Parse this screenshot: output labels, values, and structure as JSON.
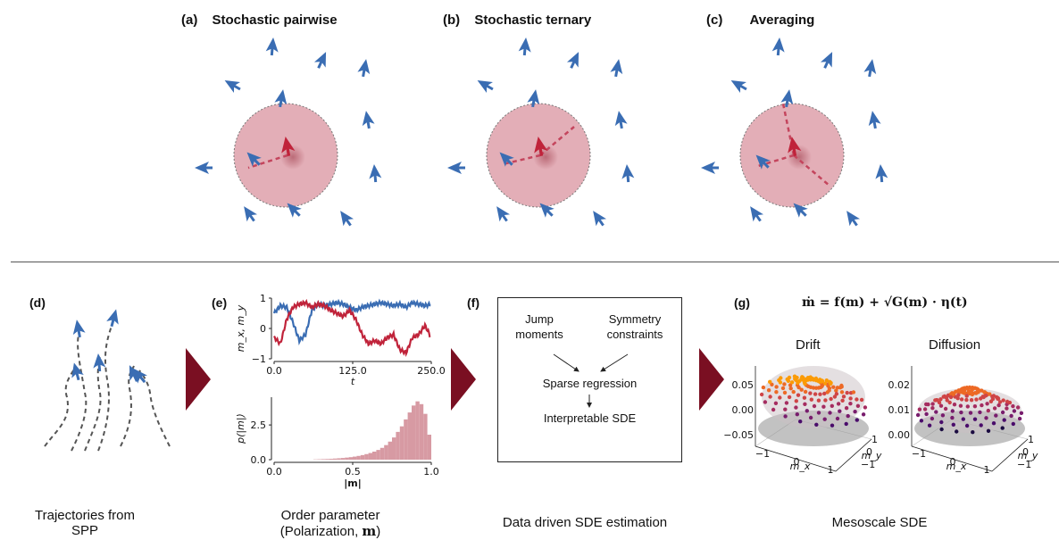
{
  "colors": {
    "agent": "#3a6db3",
    "focal": "#c0233a",
    "circle": "#e3aeb7",
    "chevron": "#7a0f22",
    "series_mx": "#3a6db3",
    "series_my": "#c0233a",
    "hist": "#d79aa3"
  },
  "top_panels": [
    {
      "letter": "(a)",
      "title": "Stochastic pairwise"
    },
    {
      "letter": "(b)",
      "title": "Stochastic ternary"
    },
    {
      "letter": "(c)",
      "title": "Averaging"
    }
  ],
  "panel_d": {
    "letter": "(d)",
    "caption_line1": "Trajectories from",
    "caption_line2": "SPP"
  },
  "panel_e": {
    "letter": "(e)",
    "caption_line1": "Order parameter",
    "caption_line2": "(Polarization, ",
    "caption_bold": "m",
    "caption_end": ")",
    "timeseries": {
      "ylabel": "m_x, m_y",
      "xlabel": "t",
      "yticks": [
        "1",
        "0",
        "−1"
      ],
      "xticks": [
        "0.0",
        "125.0",
        "250.0"
      ]
    },
    "histogram": {
      "ylabel": "p(|m|)",
      "xlabel": "|m|",
      "yticks": [
        "2.5",
        "0.0"
      ],
      "xticks": [
        "0.0",
        "0.5",
        "1.0"
      ]
    }
  },
  "panel_f": {
    "letter": "(f)",
    "box_jump": [
      "Jump",
      "moments"
    ],
    "box_sym": [
      "Symmetry",
      "constraints"
    ],
    "box_sparse": "Sparse regression",
    "box_sde": "Interpretable SDE",
    "caption": "Data driven SDE estimation"
  },
  "panel_g": {
    "letter": "(g)",
    "equation": "ṁ = f(m) + √G(m) · η(t)",
    "drift": {
      "title": "Drift",
      "zticks": [
        "0.05",
        "0.00",
        "−0.05"
      ],
      "xticks": [
        "−1",
        "0",
        "1"
      ],
      "yticks": [
        "1",
        "0",
        "−1"
      ],
      "xlabel": "m_x",
      "ylabel": "m_y"
    },
    "diffusion": {
      "title": "Diffusion",
      "zticks": [
        "0.02",
        "0.01",
        "0.00"
      ],
      "xticks": [
        "−1",
        "0",
        "1"
      ],
      "yticks": [
        "1",
        "0",
        "−1"
      ],
      "xlabel": "m_x",
      "ylabel": "m_y"
    },
    "caption": "Mesoscale SDE"
  },
  "chart_data": [
    {
      "type": "line",
      "xlabel": "t",
      "ylabel": "m_x, m_y",
      "xlim": [
        0,
        250
      ],
      "ylim": [
        -1,
        1
      ],
      "series": [
        {
          "values_x": [
            0,
            10,
            20,
            30,
            40,
            50,
            60,
            70,
            80,
            90,
            100,
            110,
            120,
            130,
            140,
            150,
            160,
            170,
            180,
            190,
            200,
            210,
            220,
            230,
            240,
            250
          ],
          "values_y": [
            0.5,
            0.75,
            0.7,
            0.2,
            -0.4,
            -0.2,
            0.6,
            0.8,
            0.75,
            0.8,
            0.85,
            0.8,
            0.7,
            0.6,
            0.7,
            0.75,
            0.8,
            0.85,
            0.8,
            0.75,
            0.8,
            0.7,
            0.85,
            0.8,
            0.75,
            0.8
          ]
        },
        {
          "values_x": [
            0,
            10,
            20,
            30,
            40,
            50,
            60,
            70,
            80,
            90,
            100,
            110,
            120,
            130,
            140,
            150,
            160,
            170,
            180,
            190,
            200,
            210,
            220,
            230,
            240,
            250
          ],
          "values_y": [
            -0.3,
            -0.5,
            0.3,
            0.7,
            0.8,
            0.85,
            0.7,
            0.8,
            0.75,
            0.6,
            0.5,
            0.4,
            0.6,
            0.3,
            -0.2,
            -0.5,
            -0.4,
            -0.5,
            -0.3,
            -0.2,
            -0.7,
            -0.8,
            -0.3,
            -0.2,
            0.1,
            -0.3
          ]
        }
      ]
    },
    {
      "type": "bar",
      "xlabel": "|m|",
      "ylabel": "p(|m|)",
      "xlim": [
        0,
        1
      ],
      "ylim": [
        0,
        4.5
      ],
      "bins_start": 0.0,
      "bin_width": 0.025,
      "values": [
        0,
        0,
        0,
        0,
        0,
        0,
        0,
        0,
        0,
        0,
        0.02,
        0.03,
        0.04,
        0.05,
        0.06,
        0.08,
        0.1,
        0.12,
        0.15,
        0.18,
        0.22,
        0.27,
        0.33,
        0.4,
        0.48,
        0.58,
        0.7,
        0.85,
        1.05,
        1.3,
        1.6,
        2.0,
        2.4,
        2.9,
        3.4,
        3.9,
        4.2,
        4.0,
        3.3,
        1.8
      ]
    }
  ]
}
